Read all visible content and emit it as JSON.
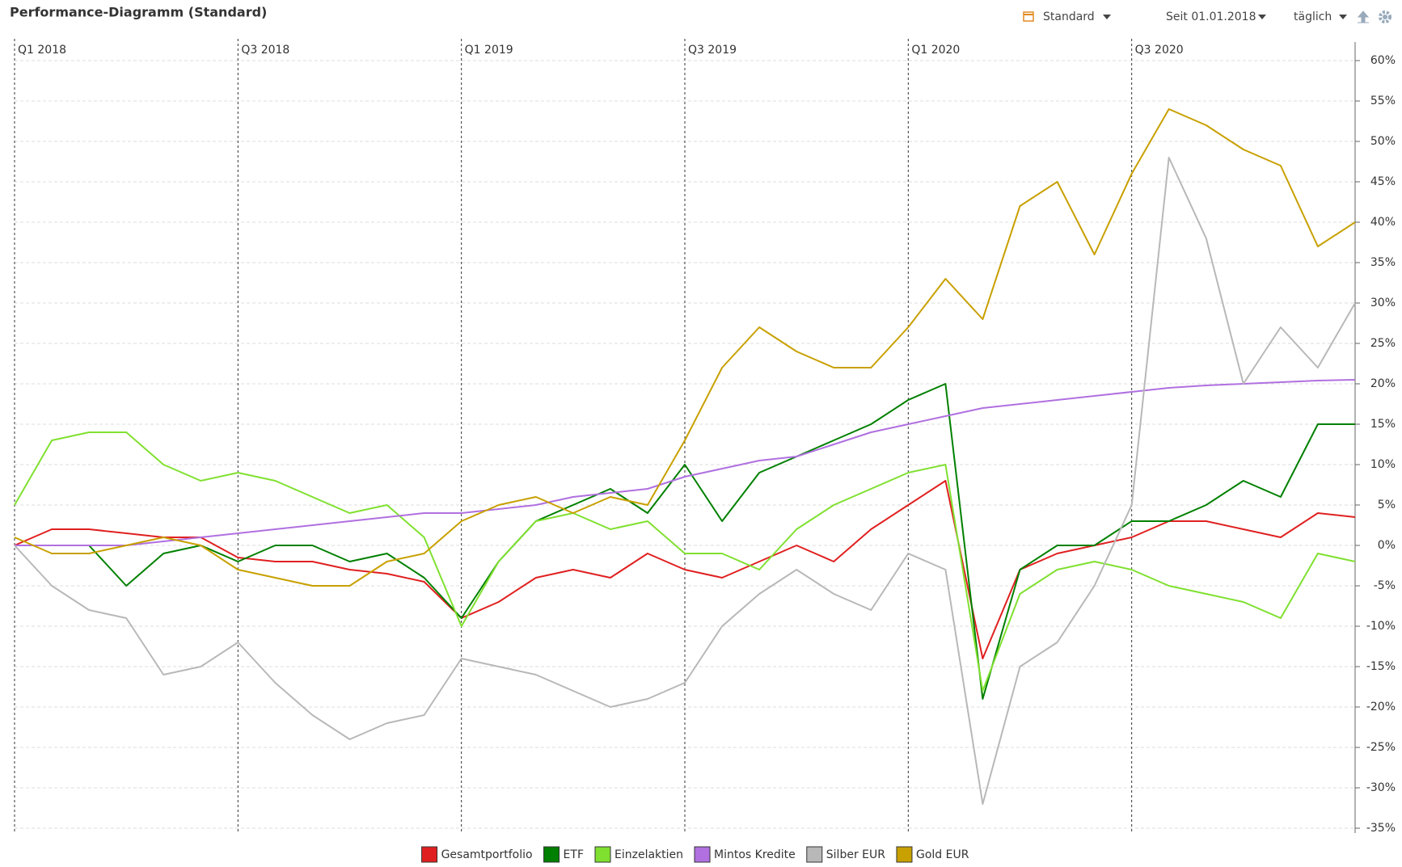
{
  "chart_data": {
    "type": "line",
    "title": "Performance-Diagramm (Standard)",
    "categories": [
      "Q1 2018",
      null,
      null,
      null,
      null,
      null,
      "Q3 2018",
      null,
      null,
      null,
      null,
      null,
      "Q1 2019",
      null,
      null,
      null,
      null,
      null,
      "Q3 2019",
      null,
      null,
      null,
      null,
      null,
      "Q1 2020",
      null,
      null,
      null,
      null,
      null,
      "Q3 2020",
      null,
      null,
      null,
      null,
      null,
      null
    ],
    "series": [
      {
        "name": "Gesamtportfolio",
        "color": "#e02020",
        "values": [
          0,
          2,
          2,
          1.5,
          1,
          1,
          -1.5,
          -2,
          -2,
          -3,
          -3.5,
          -4.5,
          -9,
          -7,
          -4,
          -3,
          -4,
          -1,
          -3,
          -4,
          -2,
          0,
          -2,
          2,
          5,
          8,
          -14,
          -3,
          -1,
          0,
          1,
          3,
          3,
          2,
          1,
          4,
          3.5
        ]
      },
      {
        "name": "ETF",
        "color": "#008000",
        "values": [
          0,
          0,
          0,
          -5,
          -1,
          0,
          -2,
          0,
          0,
          -2,
          -1,
          -4,
          -9,
          -2,
          3,
          5,
          7,
          4,
          10,
          3,
          9,
          11,
          13,
          15,
          18,
          20,
          -19,
          -3,
          0,
          0,
          3,
          3,
          5,
          8,
          6,
          15,
          15
        ]
      },
      {
        "name": "Einzelaktien",
        "color": "#80e030",
        "values": [
          5,
          13,
          14,
          14,
          10,
          8,
          9,
          8,
          6,
          4,
          5,
          1,
          -10,
          -2,
          3,
          4,
          2,
          3,
          -1,
          -1,
          -3,
          2,
          5,
          7,
          9,
          10,
          -18,
          -6,
          -3,
          -2,
          -3,
          -5,
          -6,
          -7,
          -9,
          -1,
          -2
        ]
      },
      {
        "name": "Mintos Kredite",
        "color": "#b070e0",
        "values": [
          0,
          0,
          0,
          0,
          0.5,
          1,
          1.5,
          2,
          2.5,
          3,
          3.5,
          4,
          4,
          4.5,
          5,
          6,
          6.5,
          7,
          8.5,
          9.5,
          10.5,
          11,
          12.5,
          14,
          15,
          16,
          17,
          17.5,
          18,
          18.5,
          19,
          19.5,
          19.8,
          20,
          20.2,
          20.4,
          20.5
        ]
      },
      {
        "name": "Silber EUR",
        "color": "#b8b8b8",
        "values": [
          0,
          -5,
          -8,
          -9,
          -16,
          -15,
          -12,
          -17,
          -21,
          -24,
          -22,
          -21,
          -14,
          -15,
          -16,
          -18,
          -20,
          -19,
          -17,
          -10,
          -6,
          -3,
          -6,
          -8,
          -1,
          -3,
          -32,
          -15,
          -12,
          -5,
          5,
          48,
          38,
          20,
          27,
          22,
          30
        ]
      },
      {
        "name": "Gold EUR",
        "color": "#c8a000",
        "values": [
          1,
          -1,
          -1,
          0,
          1,
          0,
          -3,
          -4,
          -5,
          -5,
          -2,
          -1,
          3,
          5,
          6,
          4,
          6,
          5,
          13,
          22,
          27,
          24,
          22,
          22,
          27,
          33,
          28,
          42,
          45,
          36,
          46,
          54,
          52,
          49,
          47,
          37,
          40
        ]
      }
    ],
    "ylim": [
      -35,
      60
    ],
    "yticks": [
      {
        "value": 60,
        "label": "60%"
      },
      {
        "value": 55,
        "label": "55%"
      },
      {
        "value": 50,
        "label": "50%"
      },
      {
        "value": 45,
        "label": "45%"
      },
      {
        "value": 40,
        "label": "40%"
      },
      {
        "value": 35,
        "label": "35%"
      },
      {
        "value": 30,
        "label": "30%"
      },
      {
        "value": 25,
        "label": "25%"
      },
      {
        "value": 20,
        "label": "20%"
      },
      {
        "value": 15,
        "label": "15%"
      },
      {
        "value": 10,
        "label": "10%"
      },
      {
        "value": 5,
        "label": "5%"
      },
      {
        "value": 0,
        "label": "0%"
      },
      {
        "value": -5,
        "label": "-5%"
      },
      {
        "value": -10,
        "label": "-10%"
      },
      {
        "value": -15,
        "label": "-15%"
      },
      {
        "value": -20,
        "label": "-20%"
      },
      {
        "value": -25,
        "label": "-25%"
      },
      {
        "value": -30,
        "label": "-30%"
      },
      {
        "value": -35,
        "label": "-35%"
      }
    ],
    "grid": true
  },
  "controls": {
    "benchmark": "Standard",
    "period": "Seit 01.01.2018",
    "interval": "täglich"
  }
}
